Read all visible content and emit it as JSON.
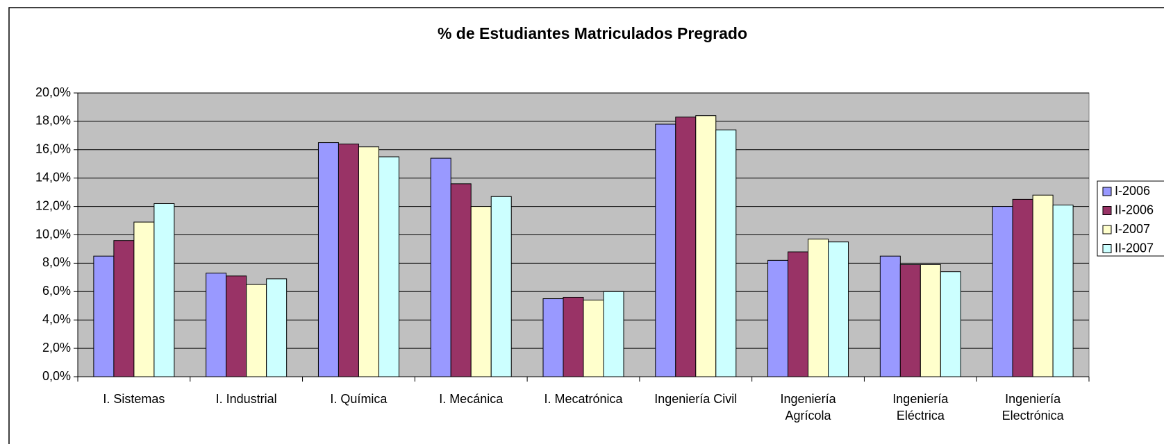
{
  "chart_data": {
    "type": "bar",
    "title": "% de Estudiantes Matriculados Pregrado",
    "categories": [
      "I. Sistemas",
      "I. Industrial",
      "I. Química",
      "I. Mecánica",
      "I. Mecatrónica",
      "Ingeniería Civil",
      "Ingeniería Agrícola",
      "Ingeniería Eléctrica",
      "Ingeniería Electrónica"
    ],
    "series": [
      {
        "name": "I-2006",
        "color": "#9999ff",
        "values": [
          8.5,
          7.3,
          16.5,
          15.4,
          5.5,
          17.8,
          8.2,
          8.5,
          12.0
        ]
      },
      {
        "name": "II-2006",
        "color": "#993366",
        "values": [
          9.6,
          7.1,
          16.4,
          13.6,
          5.6,
          18.3,
          8.8,
          7.9,
          12.5
        ]
      },
      {
        "name": "I-2007",
        "color": "#ffffcc",
        "values": [
          10.9,
          6.5,
          16.2,
          12.0,
          5.4,
          18.4,
          9.7,
          7.9,
          12.8
        ]
      },
      {
        "name": "II-2007",
        "color": "#ccffff",
        "values": [
          12.2,
          6.9,
          15.5,
          12.7,
          6.0,
          17.4,
          9.5,
          7.4,
          12.1
        ]
      }
    ],
    "ylim": [
      0,
      20
    ],
    "yticks": [
      {
        "value": 0,
        "label": "0,0%"
      },
      {
        "value": 2,
        "label": "2,0%"
      },
      {
        "value": 4,
        "label": "4,0%"
      },
      {
        "value": 6,
        "label": "6,0%"
      },
      {
        "value": 8,
        "label": "8,0%"
      },
      {
        "value": 10,
        "label": "10,0%"
      },
      {
        "value": 12,
        "label": "12,0%"
      },
      {
        "value": 14,
        "label": "14,0%"
      },
      {
        "value": 16,
        "label": "16,0%"
      },
      {
        "value": 18,
        "label": "18,0%"
      },
      {
        "value": 20,
        "label": "20,0%"
      }
    ],
    "grid": true,
    "plot_background": "#c0c0c0",
    "legend": "right"
  }
}
